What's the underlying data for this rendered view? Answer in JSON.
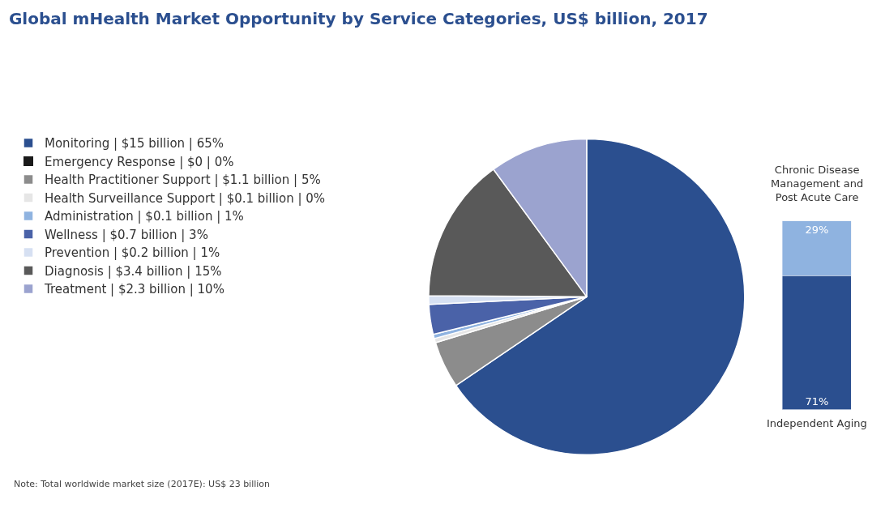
{
  "chart_data": [
    {
      "type": "pie",
      "title": "Global mHealth Market Opportunity by Service Categories, US$ billion, 2017",
      "categories": [
        "Monitoring | $15 billion | 65%",
        "Emergency Response | $0 | 0%",
        "Health Practitioner Support | $1.1 billion | 5%",
        "Health Surveillance Support | $0.1 billion | 0%",
        "Administration | $0.1 billion | 1%",
        "Wellness | $0.7 billion | 3%",
        "Prevention | $0.2 billion | 1%",
        "Diagnosis | $3.4 billion | 15%",
        "Treatment | $2.3 billion | 10%"
      ],
      "values": [
        15,
        0,
        1.1,
        0.1,
        0.1,
        0.7,
        0.2,
        3.4,
        2.3
      ],
      "colors": [
        "#2b4f8f",
        "#1a1a1a",
        "#8c8c8c",
        "#e6e6e6",
        "#8fb3e0",
        "#4a62a8",
        "#d6e0f2",
        "#595959",
        "#9ba3cf"
      ],
      "legend": "left",
      "annotations": [
        "Note: Total worldwide market size (2017E): US$ 23 billion"
      ]
    },
    {
      "type": "bar",
      "categories": [
        null
      ],
      "stacked": true,
      "legend": false,
      "series": [
        {
          "name": "Independent Aging",
          "color": "#2b4f8f",
          "values": [
            71
          ],
          "value_labels": [
            "71%"
          ]
        },
        {
          "name": "Chronic Disease Management and Post Acute Care",
          "color": "#8fb3e0",
          "values": [
            29
          ],
          "value_labels": [
            "29%"
          ]
        }
      ]
    }
  ]
}
